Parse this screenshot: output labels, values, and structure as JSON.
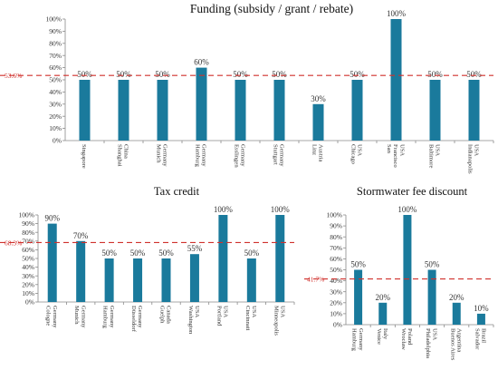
{
  "colors": {
    "bar": "#1a7a9c",
    "mean_line": "#d0312d",
    "axis": "#8a8a8a"
  },
  "chart_data": [
    {
      "type": "bar",
      "title": "Funding (subsidy / grant / rebate)",
      "xlabel": "",
      "ylabel": "",
      "ylim": [
        0,
        100
      ],
      "y_tick_step": 10,
      "grid": false,
      "mean_line": {
        "value": 53.6,
        "label": "53.6%"
      },
      "categories": [
        [
          "Singapore"
        ],
        [
          "Shanghai",
          "China"
        ],
        [
          "Munich",
          "Germany"
        ],
        [
          "Hamburg",
          "Germany"
        ],
        [
          "Esslingen",
          "Germany"
        ],
        [
          "Stuttgart",
          "Germany"
        ],
        [
          "Linz",
          "Austria"
        ],
        [
          "Chicago",
          "USA"
        ],
        [
          "San",
          "Francisco",
          "USA"
        ],
        [
          "Baltimore",
          "USA"
        ],
        [
          "Indianapolis",
          "USA"
        ]
      ],
      "values": [
        50,
        50,
        50,
        60,
        50,
        50,
        30,
        50,
        100,
        50,
        50
      ],
      "data_labels": [
        "50%",
        "50%",
        "50%",
        "60%",
        "50%",
        "50%",
        "30%",
        "50%",
        "100%",
        "50%",
        "50%"
      ]
    },
    {
      "type": "bar",
      "title": "Tax credit",
      "xlabel": "",
      "ylabel": "",
      "ylim": [
        0,
        100
      ],
      "y_tick_step": 10,
      "grid": false,
      "mean_line": {
        "value": 68.3,
        "label": "68.3%"
      },
      "categories": [
        [
          "Cologne",
          "Germany"
        ],
        [
          "Munich",
          "Germany"
        ],
        [
          "Hamburg",
          "Germany"
        ],
        [
          "Düsseldorf",
          "Germany"
        ],
        [
          "Guelph",
          "Canada"
        ],
        [
          "Washington",
          "USA"
        ],
        [
          "Portland",
          "USA"
        ],
        [
          "Cincinnati",
          "USA"
        ],
        [
          "Minneapolis",
          "USA"
        ]
      ],
      "values": [
        90,
        70,
        50,
        50,
        50,
        55,
        100,
        50,
        100
      ],
      "data_labels": [
        "90%",
        "70%",
        "50%",
        "50%",
        "50%",
        "55%",
        "100%",
        "50%",
        "100%"
      ]
    },
    {
      "type": "bar",
      "title": "Stormwater fee discount",
      "xlabel": "",
      "ylabel": "",
      "ylim": [
        0,
        100
      ],
      "y_tick_step": 10,
      "grid": false,
      "mean_line": {
        "value": 41.7,
        "label": "41.7%"
      },
      "categories": [
        [
          "Hamburg",
          "Germany"
        ],
        [
          "Venice",
          "Italy"
        ],
        [
          "Wrocław",
          "Poland"
        ],
        [
          "Philadelphia",
          "USA"
        ],
        [
          "Buenos Aires",
          "Argentina"
        ],
        [
          "Salvador",
          "Brazil"
        ]
      ],
      "values": [
        50,
        20,
        100,
        50,
        20,
        10
      ],
      "data_labels": [
        "50%",
        "20%",
        "100%",
        "50%",
        "20%",
        "10%"
      ]
    }
  ]
}
